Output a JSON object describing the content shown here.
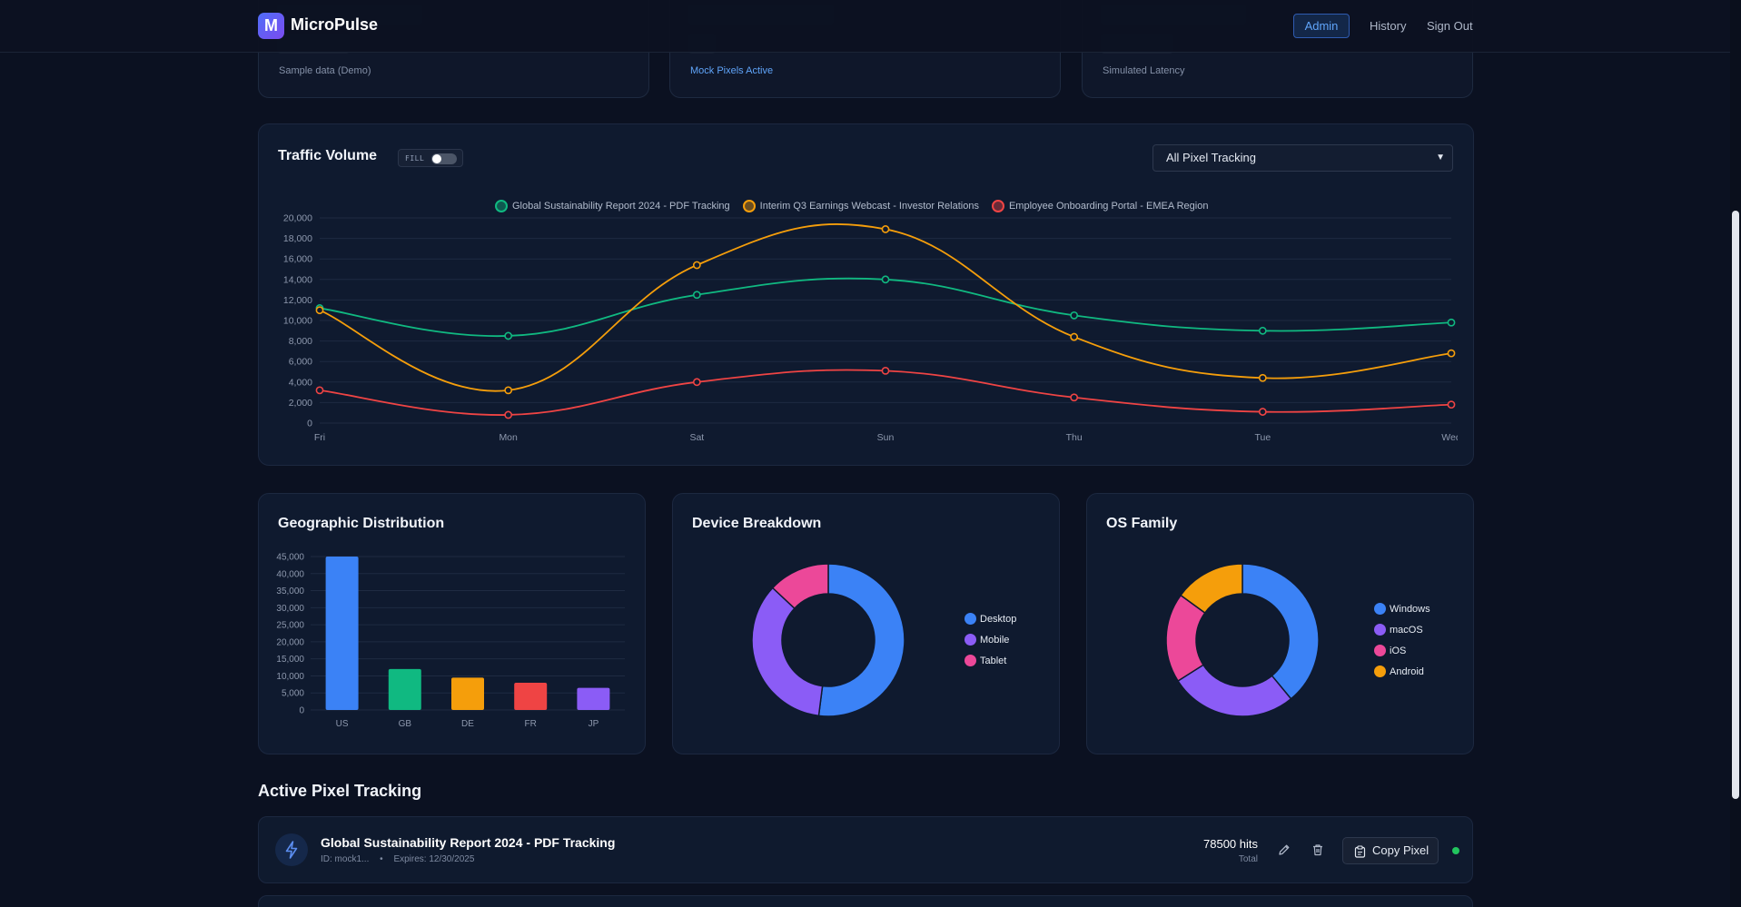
{
  "header": {
    "logo_letter": "M",
    "brand": "MicroPulse",
    "nav": {
      "admin": "Admin",
      "history": "History",
      "sign_out": "Sign Out"
    }
  },
  "summary_cards": [
    {
      "subtitle": "Sample data (Demo)"
    },
    {
      "subtitle": "Mock Pixels Active"
    },
    {
      "subtitle": "Simulated Latency"
    }
  ],
  "traffic": {
    "title": "Traffic Volume",
    "fill_label": "FILL",
    "fill_on": false,
    "select_value": "All Pixel Tracking"
  },
  "geo": {
    "title": "Geographic Distribution"
  },
  "device": {
    "title": "Device Breakdown"
  },
  "os": {
    "title": "OS Family"
  },
  "colors": {
    "green": "#10b981",
    "orange": "#f59e0b",
    "red": "#ef4444",
    "blue": "#3b82f6",
    "purple": "#8b5cf6",
    "pink": "#ec4899"
  },
  "chart_data": [
    {
      "type": "line",
      "title": "Traffic Volume",
      "categories": [
        "Fri",
        "Mon",
        "Sat",
        "Sun",
        "Thu",
        "Tue",
        "Wed"
      ],
      "ylim": [
        0,
        20000
      ],
      "yticks": [
        0,
        2000,
        4000,
        6000,
        8000,
        10000,
        12000,
        14000,
        16000,
        18000,
        20000
      ],
      "ytick_labels": [
        "0",
        "2,000",
        "4,000",
        "6,000",
        "8,000",
        "10,000",
        "12,000",
        "14,000",
        "16,000",
        "18,000",
        "20,000"
      ],
      "legend_position": "top-center",
      "series": [
        {
          "name": "Global Sustainability Report 2024 - PDF Tracking",
          "color": "#10b981",
          "values": [
            11200,
            8500,
            12500,
            14000,
            10500,
            9000,
            9800
          ]
        },
        {
          "name": "Interim Q3 Earnings Webcast - Investor Relations",
          "color": "#f59e0b",
          "values": [
            11000,
            3200,
            15400,
            18900,
            8400,
            4400,
            6800
          ]
        },
        {
          "name": "Employee Onboarding Portal - EMEA Region",
          "color": "#ef4444",
          "values": [
            3200,
            800,
            4000,
            5100,
            2500,
            1100,
            1800
          ]
        }
      ]
    },
    {
      "type": "bar",
      "title": "Geographic Distribution",
      "categories": [
        "US",
        "GB",
        "DE",
        "FR",
        "JP"
      ],
      "values": [
        45000,
        12000,
        9500,
        8000,
        6500
      ],
      "colors": [
        "#3b82f6",
        "#10b981",
        "#f59e0b",
        "#ef4444",
        "#8b5cf6"
      ],
      "ylim": [
        0,
        45000
      ],
      "yticks": [
        0,
        5000,
        10000,
        15000,
        20000,
        25000,
        30000,
        35000,
        40000,
        45000
      ],
      "ytick_labels": [
        "0",
        "5,000",
        "10,000",
        "15,000",
        "20,000",
        "25,000",
        "30,000",
        "35,000",
        "40,000",
        "45,000"
      ]
    },
    {
      "type": "pie",
      "title": "Device Breakdown",
      "labels": [
        "Desktop",
        "Mobile",
        "Tablet"
      ],
      "values": [
        52,
        35,
        13
      ],
      "colors": [
        "#3b82f6",
        "#8b5cf6",
        "#ec4899"
      ]
    },
    {
      "type": "pie",
      "title": "OS Family",
      "labels": [
        "Windows",
        "macOS",
        "iOS",
        "Android"
      ],
      "values": [
        39,
        27,
        19,
        15
      ],
      "colors": [
        "#3b82f6",
        "#8b5cf6",
        "#ec4899",
        "#f59e0b"
      ]
    }
  ],
  "active": {
    "title": "Active Pixel Tracking",
    "row": {
      "icon": "bolt-icon",
      "name": "Global Sustainability Report 2024 - PDF Tracking",
      "id_text": "ID: mock1...",
      "separator": "•",
      "expires": "Expires: 12/30/2025",
      "hits": "78500 hits",
      "hits_sub": "Total",
      "copy_label": "Copy Pixel"
    }
  }
}
